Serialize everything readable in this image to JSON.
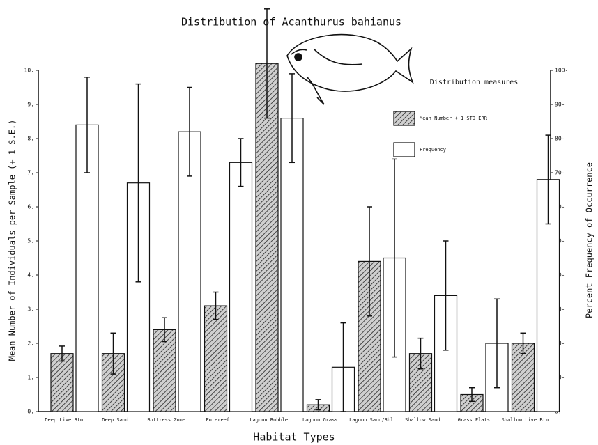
{
  "chart_data": {
    "type": "bar",
    "title": "Distribution of Acanthurus bahianus",
    "x_label": "Habitat Types",
    "y_label": "Mean Number of Individuals per Sample (+ 1 S.E.)",
    "y2_label": "Percent Frequency of Occurrence",
    "legend_title": "Distribution measures",
    "categories": [
      "Deep Live Btm",
      "Deep Sand",
      "Buttress Zone",
      "Forereef",
      "Lagoon Rubble",
      "Lagoon Grass",
      "Lagoon Sand/Rbl",
      "Shallow Sand",
      "Grass Flats",
      "Shallow Live Btm"
    ],
    "series": [
      {
        "name": "Mean Number + 1 STD ERR",
        "color": "#444444",
        "hatch": true,
        "values": [
          1.7,
          1.7,
          2.4,
          3.1,
          10.2,
          0.2,
          4.4,
          1.7,
          0.5,
          2.0
        ],
        "errors": [
          0.22,
          0.6,
          0.35,
          0.4,
          1.6,
          0.15,
          1.6,
          0.45,
          0.2,
          0.3
        ]
      },
      {
        "name": "Frequency",
        "color": "#ffffff",
        "axis": "y2",
        "values": [
          84,
          67,
          82,
          73,
          86,
          13,
          45,
          34,
          20,
          68
        ],
        "errors": [
          14,
          29,
          13,
          7,
          13,
          13,
          29,
          16,
          13,
          13
        ]
      }
    ],
    "ylim": [
      0,
      10
    ],
    "yticks": [
      {
        "value": 0,
        "label": "0."
      },
      {
        "value": 1,
        "label": "1."
      },
      {
        "value": 2,
        "label": "2."
      },
      {
        "value": 3,
        "label": "3."
      },
      {
        "value": 4,
        "label": "4."
      },
      {
        "value": 5,
        "label": "5."
      },
      {
        "value": 6,
        "label": "6."
      },
      {
        "value": 7,
        "label": "7."
      },
      {
        "value": 8,
        "label": "8."
      },
      {
        "value": 9,
        "label": "9."
      },
      {
        "value": 10,
        "label": "10."
      }
    ],
    "y2lim": [
      0,
      100
    ],
    "y2ticks": [
      {
        "value": 0,
        "label": "0."
      },
      {
        "value": 10,
        "label": "10-"
      },
      {
        "value": 20,
        "label": "20-"
      },
      {
        "value": 30,
        "label": "30-"
      },
      {
        "value": 40,
        "label": "40-"
      },
      {
        "value": 50,
        "label": "50-"
      },
      {
        "value": 60,
        "label": "60-"
      },
      {
        "value": 70,
        "label": "70-"
      },
      {
        "value": 80,
        "label": "80-"
      },
      {
        "value": 90,
        "label": "90-"
      },
      {
        "value": 100,
        "label": "100-"
      }
    ]
  }
}
